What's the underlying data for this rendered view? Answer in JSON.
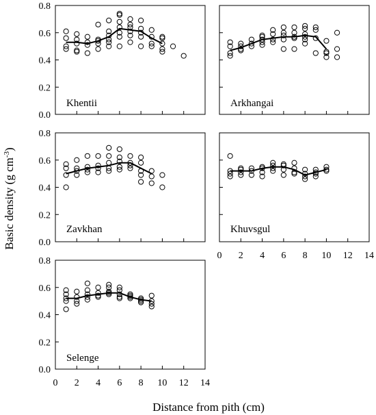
{
  "figure": {
    "ylabel_main": "Basic density (g cm",
    "ylabel_sup": "-3",
    "ylabel_close": ")",
    "xlabel": "Distance from pith (cm)"
  },
  "chart_data": [
    {
      "type": "scatter",
      "panel": "Khentii",
      "ylim": [
        0,
        0.8
      ],
      "xlim": [
        0,
        14
      ],
      "yticks": [
        "0.0",
        "0.2",
        "0.4",
        "0.6",
        "0.8"
      ],
      "points": [
        [
          1,
          0.61
        ],
        [
          1,
          0.56
        ],
        [
          1,
          0.5
        ],
        [
          1,
          0.48
        ],
        [
          2,
          0.59
        ],
        [
          2,
          0.55
        ],
        [
          2,
          0.52
        ],
        [
          2,
          0.47
        ],
        [
          2,
          0.46
        ],
        [
          3,
          0.57
        ],
        [
          3,
          0.53
        ],
        [
          3,
          0.51
        ],
        [
          3,
          0.45
        ],
        [
          4,
          0.66
        ],
        [
          4,
          0.55
        ],
        [
          4,
          0.54
        ],
        [
          4,
          0.52
        ],
        [
          4,
          0.48
        ],
        [
          5,
          0.69
        ],
        [
          5,
          0.61
        ],
        [
          5,
          0.58
        ],
        [
          5,
          0.55
        ],
        [
          5,
          0.53
        ],
        [
          5,
          0.5
        ],
        [
          6,
          0.74
        ],
        [
          6,
          0.73
        ],
        [
          6,
          0.68
        ],
        [
          6,
          0.64
        ],
        [
          6,
          0.6
        ],
        [
          6,
          0.57
        ],
        [
          6,
          0.5
        ],
        [
          7,
          0.7
        ],
        [
          7,
          0.66
        ],
        [
          7,
          0.64
        ],
        [
          7,
          0.61
        ],
        [
          7,
          0.58
        ],
        [
          7,
          0.53
        ],
        [
          8,
          0.69
        ],
        [
          8,
          0.63
        ],
        [
          8,
          0.6
        ],
        [
          8,
          0.57
        ],
        [
          8,
          0.5
        ],
        [
          9,
          0.62
        ],
        [
          9,
          0.57
        ],
        [
          9,
          0.52
        ],
        [
          9,
          0.5
        ],
        [
          10,
          0.57
        ],
        [
          10,
          0.56
        ],
        [
          10,
          0.52
        ],
        [
          10,
          0.48
        ],
        [
          10,
          0.46
        ],
        [
          11,
          0.5
        ],
        [
          12,
          0.43
        ]
      ],
      "mean_line": [
        [
          1,
          0.53
        ],
        [
          2,
          0.53
        ],
        [
          3,
          0.52
        ],
        [
          4,
          0.54
        ],
        [
          5,
          0.57
        ],
        [
          6,
          0.63
        ],
        [
          7,
          0.62
        ],
        [
          8,
          0.61
        ],
        [
          9,
          0.56
        ],
        [
          10,
          0.52
        ]
      ]
    },
    {
      "type": "scatter",
      "panel": "Arkhangai",
      "ylim": [
        0,
        0.8
      ],
      "xlim": [
        0,
        14
      ],
      "points": [
        [
          1,
          0.53
        ],
        [
          1,
          0.5
        ],
        [
          1,
          0.45
        ],
        [
          1,
          0.43
        ],
        [
          2,
          0.52
        ],
        [
          2,
          0.5
        ],
        [
          2,
          0.48
        ],
        [
          2,
          0.47
        ],
        [
          3,
          0.55
        ],
        [
          3,
          0.52
        ],
        [
          3,
          0.5
        ],
        [
          4,
          0.58
        ],
        [
          4,
          0.57
        ],
        [
          4,
          0.55
        ],
        [
          4,
          0.53
        ],
        [
          4,
          0.51
        ],
        [
          5,
          0.62
        ],
        [
          5,
          0.59
        ],
        [
          5,
          0.55
        ],
        [
          5,
          0.53
        ],
        [
          6,
          0.64
        ],
        [
          6,
          0.6
        ],
        [
          6,
          0.58
        ],
        [
          6,
          0.55
        ],
        [
          6,
          0.48
        ],
        [
          7,
          0.64
        ],
        [
          7,
          0.6
        ],
        [
          7,
          0.57
        ],
        [
          7,
          0.56
        ],
        [
          7,
          0.48
        ],
        [
          8,
          0.65
        ],
        [
          8,
          0.63
        ],
        [
          8,
          0.59
        ],
        [
          8,
          0.57
        ],
        [
          8,
          0.55
        ],
        [
          8,
          0.52
        ],
        [
          9,
          0.64
        ],
        [
          9,
          0.62
        ],
        [
          9,
          0.56
        ],
        [
          9,
          0.45
        ],
        [
          10,
          0.54
        ],
        [
          10,
          0.46
        ],
        [
          10,
          0.45
        ],
        [
          10,
          0.42
        ],
        [
          11,
          0.6
        ],
        [
          11,
          0.48
        ],
        [
          11,
          0.42
        ]
      ],
      "mean_line": [
        [
          1,
          0.47
        ],
        [
          2,
          0.49
        ],
        [
          3,
          0.52
        ],
        [
          4,
          0.55
        ],
        [
          5,
          0.56
        ],
        [
          6,
          0.57
        ],
        [
          7,
          0.57
        ],
        [
          8,
          0.58
        ],
        [
          9,
          0.57
        ],
        [
          10,
          0.48
        ]
      ]
    },
    {
      "type": "scatter",
      "panel": "Zavkhan",
      "ylim": [
        0,
        0.8
      ],
      "xlim": [
        0,
        14
      ],
      "yticks": [
        "0.0",
        "0.2",
        "0.4",
        "0.6",
        "0.8"
      ],
      "points": [
        [
          1,
          0.57
        ],
        [
          1,
          0.54
        ],
        [
          1,
          0.49
        ],
        [
          1,
          0.4
        ],
        [
          2,
          0.6
        ],
        [
          2,
          0.54
        ],
        [
          2,
          0.52
        ],
        [
          2,
          0.49
        ],
        [
          3,
          0.63
        ],
        [
          3,
          0.55
        ],
        [
          3,
          0.53
        ],
        [
          3,
          0.51
        ],
        [
          4,
          0.63
        ],
        [
          4,
          0.56
        ],
        [
          4,
          0.54
        ],
        [
          4,
          0.51
        ],
        [
          5,
          0.69
        ],
        [
          5,
          0.63
        ],
        [
          5,
          0.58
        ],
        [
          5,
          0.54
        ],
        [
          5,
          0.52
        ],
        [
          6,
          0.68
        ],
        [
          6,
          0.62
        ],
        [
          6,
          0.59
        ],
        [
          6,
          0.55
        ],
        [
          6,
          0.53
        ],
        [
          7,
          0.63
        ],
        [
          7,
          0.58
        ],
        [
          7,
          0.56
        ],
        [
          7,
          0.54
        ],
        [
          8,
          0.62
        ],
        [
          8,
          0.58
        ],
        [
          8,
          0.52
        ],
        [
          8,
          0.49
        ],
        [
          8,
          0.44
        ],
        [
          9,
          0.52
        ],
        [
          9,
          0.48
        ],
        [
          9,
          0.43
        ],
        [
          10,
          0.49
        ],
        [
          10,
          0.4
        ]
      ],
      "mean_line": [
        [
          1,
          0.5
        ],
        [
          2,
          0.52
        ],
        [
          3,
          0.54
        ],
        [
          4,
          0.55
        ],
        [
          5,
          0.56
        ],
        [
          6,
          0.58
        ],
        [
          7,
          0.58
        ],
        [
          8,
          0.54
        ],
        [
          9,
          0.5
        ]
      ]
    },
    {
      "type": "scatter",
      "panel": "Khuvsgul",
      "ylim": [
        0,
        0.8
      ],
      "xlim": [
        0,
        14
      ],
      "xticks": [
        "0",
        "2",
        "4",
        "6",
        "8",
        "10",
        "12",
        "14"
      ],
      "points": [
        [
          1,
          0.63
        ],
        [
          1,
          0.52
        ],
        [
          1,
          0.5
        ],
        [
          1,
          0.48
        ],
        [
          2,
          0.54
        ],
        [
          2,
          0.53
        ],
        [
          2,
          0.51
        ],
        [
          2,
          0.49
        ],
        [
          3,
          0.54
        ],
        [
          3,
          0.52
        ],
        [
          3,
          0.49
        ],
        [
          4,
          0.55
        ],
        [
          4,
          0.54
        ],
        [
          4,
          0.51
        ],
        [
          4,
          0.48
        ],
        [
          5,
          0.58
        ],
        [
          5,
          0.56
        ],
        [
          5,
          0.54
        ],
        [
          5,
          0.52
        ],
        [
          6,
          0.57
        ],
        [
          6,
          0.56
        ],
        [
          6,
          0.53
        ],
        [
          6,
          0.49
        ],
        [
          7,
          0.58
        ],
        [
          7,
          0.54
        ],
        [
          7,
          0.51
        ],
        [
          7,
          0.5
        ],
        [
          8,
          0.53
        ],
        [
          8,
          0.5
        ],
        [
          8,
          0.48
        ],
        [
          8,
          0.46
        ],
        [
          9,
          0.53
        ],
        [
          9,
          0.51
        ],
        [
          9,
          0.5
        ],
        [
          9,
          0.48
        ],
        [
          10,
          0.55
        ],
        [
          10,
          0.53
        ],
        [
          10,
          0.52
        ]
      ],
      "mean_line": [
        [
          1,
          0.52
        ],
        [
          2,
          0.52
        ],
        [
          3,
          0.52
        ],
        [
          4,
          0.54
        ],
        [
          5,
          0.55
        ],
        [
          6,
          0.55
        ],
        [
          7,
          0.53
        ],
        [
          8,
          0.49
        ],
        [
          9,
          0.51
        ],
        [
          10,
          0.53
        ]
      ]
    },
    {
      "type": "scatter",
      "panel": "Selenge",
      "ylim": [
        0,
        0.8
      ],
      "xlim": [
        0,
        14
      ],
      "yticks": [
        "0.0",
        "0.2",
        "0.4",
        "0.6",
        "0.8"
      ],
      "xticks": [
        "0",
        "2",
        "4",
        "6",
        "8",
        "10",
        "12",
        "14"
      ],
      "points": [
        [
          1,
          0.58
        ],
        [
          1,
          0.55
        ],
        [
          1,
          0.52
        ],
        [
          1,
          0.5
        ],
        [
          1,
          0.44
        ],
        [
          2,
          0.57
        ],
        [
          2,
          0.53
        ],
        [
          2,
          0.5
        ],
        [
          2,
          0.48
        ],
        [
          3,
          0.63
        ],
        [
          3,
          0.58
        ],
        [
          3,
          0.55
        ],
        [
          3,
          0.53
        ],
        [
          3,
          0.51
        ],
        [
          4,
          0.6
        ],
        [
          4,
          0.56
        ],
        [
          4,
          0.54
        ],
        [
          4,
          0.53
        ],
        [
          5,
          0.62
        ],
        [
          5,
          0.6
        ],
        [
          5,
          0.57
        ],
        [
          5,
          0.56
        ],
        [
          5,
          0.55
        ],
        [
          6,
          0.6
        ],
        [
          6,
          0.58
        ],
        [
          6,
          0.55
        ],
        [
          6,
          0.53
        ],
        [
          6,
          0.52
        ],
        [
          7,
          0.55
        ],
        [
          7,
          0.54
        ],
        [
          7,
          0.53
        ],
        [
          7,
          0.52
        ],
        [
          8,
          0.52
        ],
        [
          8,
          0.51
        ],
        [
          8,
          0.5
        ],
        [
          8,
          0.49
        ],
        [
          9,
          0.54
        ],
        [
          9,
          0.5
        ],
        [
          9,
          0.48
        ],
        [
          9,
          0.46
        ]
      ],
      "mean_line": [
        [
          1,
          0.52
        ],
        [
          2,
          0.52
        ],
        [
          3,
          0.54
        ],
        [
          4,
          0.55
        ],
        [
          5,
          0.56
        ],
        [
          6,
          0.56
        ],
        [
          7,
          0.53
        ],
        [
          8,
          0.51
        ],
        [
          9,
          0.5
        ]
      ]
    }
  ]
}
